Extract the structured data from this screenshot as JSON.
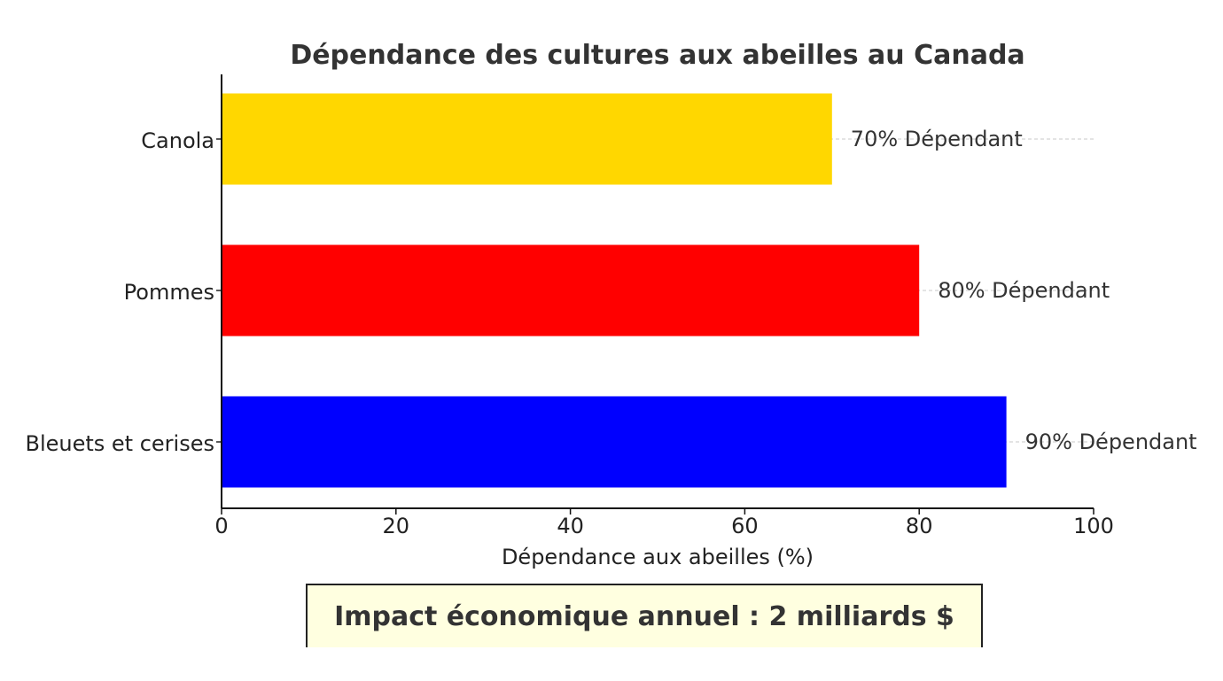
{
  "chart_data": {
    "type": "bar",
    "orientation": "horizontal",
    "title": "Dépendance des cultures aux abeilles au Canada",
    "xlabel": "Dépendance aux abeilles (%)",
    "ylabel": "",
    "xlim": [
      0,
      100
    ],
    "xticks": [
      0,
      20,
      40,
      60,
      80,
      100
    ],
    "categories": [
      "Canola",
      "Pommes",
      "Bleuets et cerises"
    ],
    "values": [
      70,
      80,
      90
    ],
    "colors": [
      "#ffd700",
      "#ff0000",
      "#0000ff"
    ],
    "data_labels": [
      "70% Dépendant",
      "80% Dépendant",
      "90% Dépendant"
    ],
    "grid": "dashed lines at bar centers",
    "annotation": "Impact économique annuel : 2 milliards $"
  }
}
